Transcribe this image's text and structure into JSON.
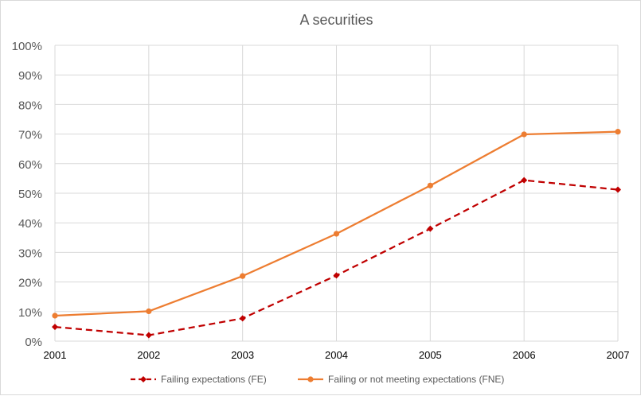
{
  "chart_data": {
    "type": "line",
    "title": "A securities",
    "xlabel": "",
    "ylabel": "",
    "categories": [
      "2001",
      "2002",
      "2003",
      "2004",
      "2005",
      "2006",
      "2007"
    ],
    "y_ticks": [
      "0%",
      "10%",
      "20%",
      "30%",
      "40%",
      "50%",
      "60%",
      "70%",
      "80%",
      "90%",
      "100%"
    ],
    "ylim": [
      0,
      100
    ],
    "grid": true,
    "legend_position": "bottom",
    "series": [
      {
        "name": "Failing expectations (FE)",
        "values": [
          4.8,
          2.0,
          7.7,
          22.2,
          38.0,
          54.4,
          51.2
        ],
        "color": "#c00000",
        "line_style": "dashed",
        "marker": "diamond"
      },
      {
        "name": "Failing or not meeting expectations (FNE)",
        "values": [
          8.6,
          10.1,
          22.0,
          36.3,
          52.6,
          69.9,
          70.8
        ],
        "color": "#ed7d31",
        "line_style": "solid",
        "marker": "circle"
      }
    ]
  }
}
